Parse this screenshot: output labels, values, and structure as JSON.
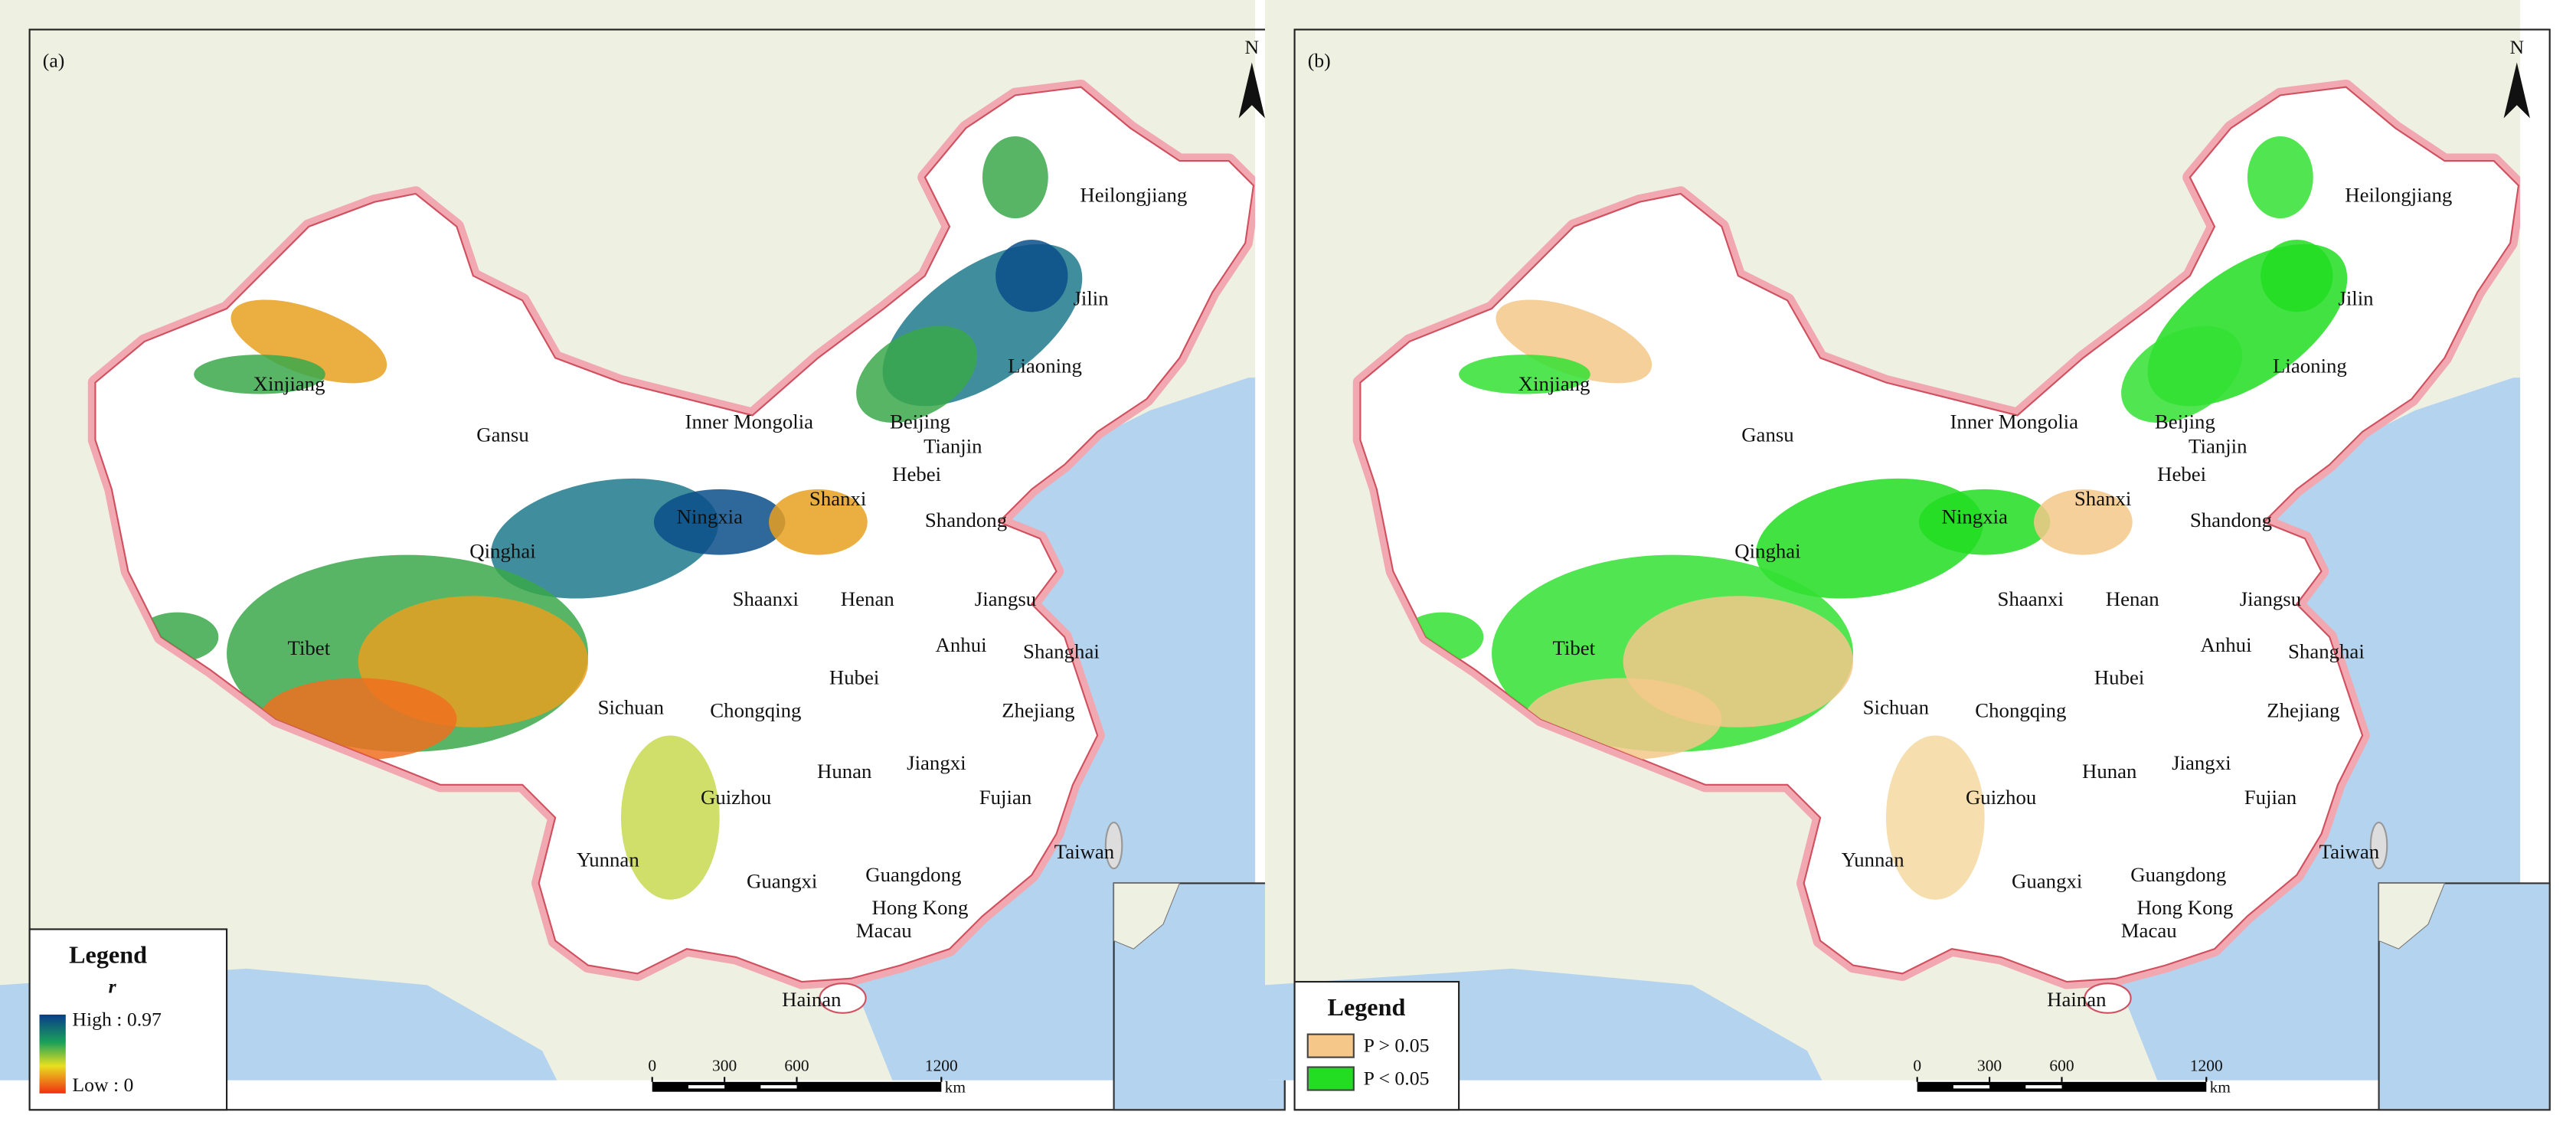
{
  "panels": [
    {
      "label": "(a)",
      "north": "N",
      "provinces": [
        "Xinjiang",
        "Heilongjiang",
        "Jilin",
        "Liaoning",
        "Inner Mongolia",
        "Beijing",
        "Tianjin",
        "Hebei",
        "Gansu",
        "Shanxi",
        "Shandong",
        "Ningxia",
        "Qinghai",
        "Shaanxi",
        "Henan",
        "Jiangsu",
        "Anhui",
        "Shanghai",
        "Tibet",
        "Hubei",
        "Sichuan",
        "Chongqing",
        "Zhejiang",
        "Jiangxi",
        "Hunan",
        "Guizhou",
        "Fujian",
        "Taiwan",
        "Yunnan",
        "Guangdong",
        "Guangxi",
        "Hong Kong",
        "Macau",
        "Hainan"
      ],
      "legend": {
        "title": "Legend",
        "subtitle": "r",
        "high": "High : 0.97",
        "low": "Low : 0"
      },
      "scale_bar": {
        "ticks": [
          0,
          300,
          600,
          1200
        ],
        "unit": "km"
      }
    },
    {
      "label": "(b)",
      "north": "N",
      "provinces": [
        "Xinjiang",
        "Heilongjiang",
        "Jilin",
        "Liaoning",
        "Inner Mongolia",
        "Beijing",
        "Tianjin",
        "Hebei",
        "Gansu",
        "Shanxi",
        "Shandong",
        "Ningxia",
        "Qinghai",
        "Shaanxi",
        "Henan",
        "Jiangsu",
        "Anhui",
        "Shanghai",
        "Tibet",
        "Hubei",
        "Sichuan",
        "Chongqing",
        "Zhejiang",
        "Jiangxi",
        "Hunan",
        "Guizhou",
        "Fujian",
        "Taiwan",
        "Yunnan",
        "Guangdong",
        "Guangxi",
        "Hong Kong",
        "Macau",
        "Hainan"
      ],
      "legend": {
        "title": "Legend",
        "items": [
          "P > 0.05",
          "P < 0.05"
        ]
      },
      "scale_bar": {
        "ticks": [
          0,
          300,
          600,
          1200
        ],
        "unit": "km"
      }
    }
  ]
}
